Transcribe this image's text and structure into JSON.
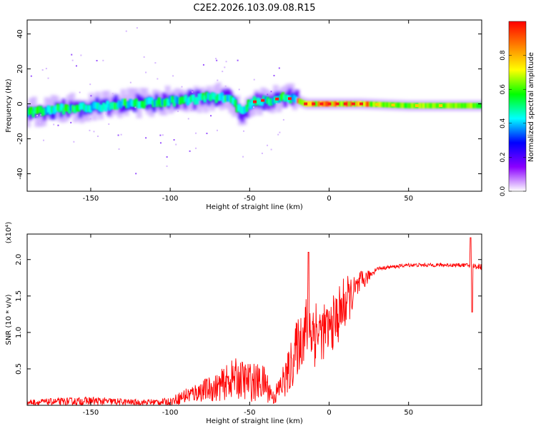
{
  "title": "C2E2.2026.103.09.08.R15",
  "chart_data": [
    {
      "type": "heatmap",
      "xlabel": "Height of straight line (km)",
      "ylabel": "Frequency (Hz)",
      "xlim": [
        -190,
        96
      ],
      "ylim": [
        -50,
        48
      ],
      "xticks": [
        -150,
        -100,
        -50,
        0,
        50
      ],
      "yticks": [
        -40,
        -20,
        0,
        20,
        40
      ],
      "colorbar": {
        "label": "Normalized spectral amplitude",
        "range": [
          0,
          1
        ],
        "ticks": [
          "0.0",
          "0.2",
          "0.4",
          "0.6",
          "0.8"
        ],
        "colors": [
          "#ffffff",
          "#8b00ff",
          "#0000ff",
          "#00ffff",
          "#00ff00",
          "#ffff00",
          "#ff8000",
          "#ff0000"
        ]
      },
      "ridge": [
        {
          "x": -190,
          "y": -5
        },
        {
          "x": -170,
          "y": -3
        },
        {
          "x": -150,
          "y": -2
        },
        {
          "x": -130,
          "y": 0
        },
        {
          "x": -110,
          "y": 1
        },
        {
          "x": -90,
          "y": 2
        },
        {
          "x": -75,
          "y": 4
        },
        {
          "x": -62,
          "y": 3
        },
        {
          "x": -55,
          "y": -5
        },
        {
          "x": -50,
          "y": 0
        },
        {
          "x": -45,
          "y": 2
        },
        {
          "x": -35,
          "y": 2
        },
        {
          "x": -30,
          "y": 4
        },
        {
          "x": -20,
          "y": 2
        },
        {
          "x": -15,
          "y": 0
        },
        {
          "x": 0,
          "y": 0
        },
        {
          "x": 20,
          "y": 0
        },
        {
          "x": 50,
          "y": -1
        },
        {
          "x": 96,
          "y": -1
        }
      ]
    },
    {
      "type": "line",
      "xlabel": "Height of straight line (km)",
      "ylabel": "SNR (10 * v/v)",
      "y_multiplier": "(x10⁴)",
      "xlim": [
        -190,
        96
      ],
      "ylim": [
        0,
        2.35
      ],
      "xticks": [
        -150,
        -100,
        -50,
        0,
        50
      ],
      "yticks": [
        "0.5",
        "1.0",
        "1.5",
        "2.0"
      ],
      "series": [
        {
          "color": "#ff0000",
          "envelope": [
            {
              "x": -190,
              "lo": 0.0,
              "hi": 0.08
            },
            {
              "x": -150,
              "lo": 0.0,
              "hi": 0.12
            },
            {
              "x": -120,
              "lo": 0.0,
              "hi": 0.08
            },
            {
              "x": -100,
              "lo": 0.0,
              "hi": 0.1
            },
            {
              "x": -90,
              "lo": 0.02,
              "hi": 0.25
            },
            {
              "x": -80,
              "lo": 0.05,
              "hi": 0.35
            },
            {
              "x": -70,
              "lo": 0.05,
              "hi": 0.45
            },
            {
              "x": -60,
              "lo": 0.1,
              "hi": 0.65
            },
            {
              "x": -50,
              "lo": 0.05,
              "hi": 0.6
            },
            {
              "x": -40,
              "lo": 0.05,
              "hi": 0.55
            },
            {
              "x": -35,
              "lo": 0.0,
              "hi": 0.2
            },
            {
              "x": -30,
              "lo": 0.05,
              "hi": 0.5
            },
            {
              "x": -25,
              "lo": 0.15,
              "hi": 0.8
            },
            {
              "x": -20,
              "lo": 0.4,
              "hi": 1.2
            },
            {
              "x": -15,
              "lo": 0.6,
              "hi": 1.5
            },
            {
              "x": -10,
              "lo": 0.5,
              "hi": 1.6
            },
            {
              "x": -5,
              "lo": 0.6,
              "hi": 1.4
            },
            {
              "x": 0,
              "lo": 0.7,
              "hi": 1.4
            },
            {
              "x": 5,
              "lo": 0.8,
              "hi": 1.6
            },
            {
              "x": 10,
              "lo": 1.0,
              "hi": 1.8
            },
            {
              "x": 15,
              "lo": 1.3,
              "hi": 1.75
            },
            {
              "x": 20,
              "lo": 1.5,
              "hi": 1.85
            },
            {
              "x": 25,
              "lo": 1.7,
              "hi": 1.85
            },
            {
              "x": 30,
              "lo": 1.85,
              "hi": 1.9
            },
            {
              "x": 50,
              "lo": 1.9,
              "hi": 1.95
            },
            {
              "x": 85,
              "lo": 1.9,
              "hi": 1.95
            },
            {
              "x": 96,
              "lo": 1.85,
              "hi": 1.95
            }
          ],
          "spikes": [
            {
              "x": -13,
              "y": 2.1
            },
            {
              "x": 89,
              "y": 2.3
            },
            {
              "x": 90,
              "y": 1.28
            }
          ]
        }
      ]
    }
  ]
}
